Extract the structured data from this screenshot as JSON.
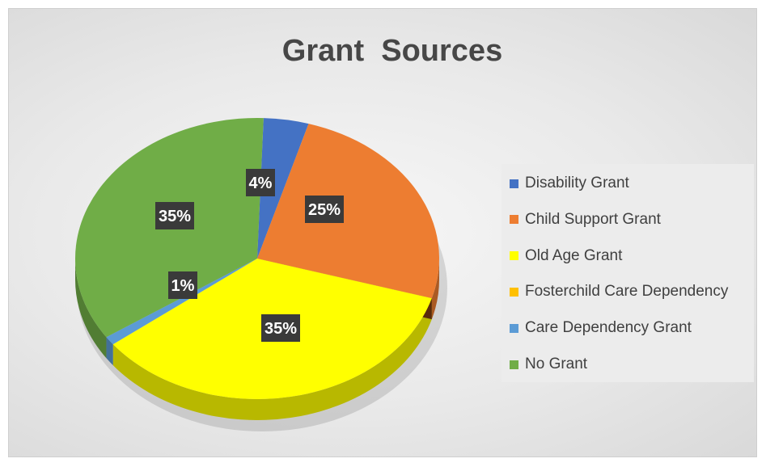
{
  "chart_data": {
    "type": "pie",
    "title": "Grant  Sources",
    "slices": [
      {
        "label": "Disability Grant",
        "value": 4,
        "data_label": "4%",
        "color": "#4472C4"
      },
      {
        "label": "Child Support Grant",
        "value": 25,
        "data_label": "25%",
        "color": "#ED7D31"
      },
      {
        "label": "Old Age Grant",
        "value": 35,
        "data_label": "35%",
        "color": "#FFFF00"
      },
      {
        "label": "Fosterchild Care Dependency",
        "value": 0,
        "data_label": "",
        "color": "#FFC000"
      },
      {
        "label": "Care Dependency Grant",
        "value": 1,
        "data_label": "1%",
        "color": "#5B9BD5"
      },
      {
        "label": "No Grant",
        "value": 35,
        "data_label": "35%",
        "color": "#70AD47"
      }
    ],
    "legend_position": "right",
    "style": "3d-pie"
  }
}
